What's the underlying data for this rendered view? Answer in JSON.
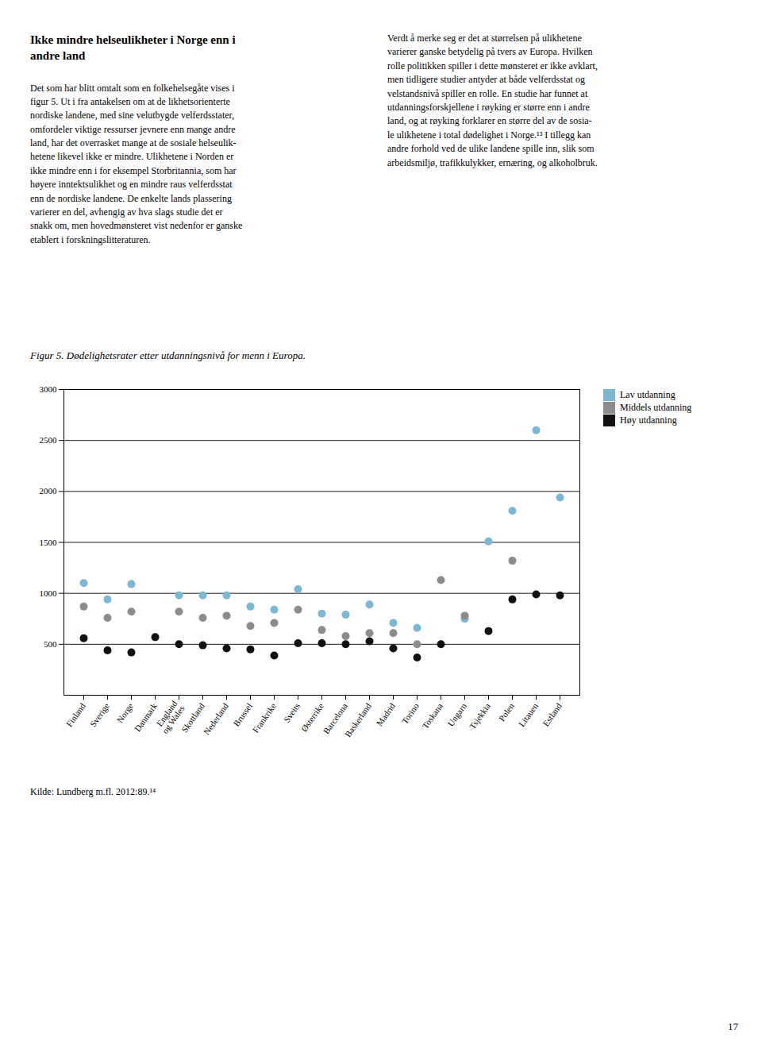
{
  "chart_data": {
    "type": "scatter",
    "title": "Figur 5. Dødelighetsrater etter utdanningsnivå for menn i Europa.",
    "caption": "Kilde: Lundberg m.fl. 2012:89.¹⁴",
    "annotations": [
      "Ikke mindre helseulikheter i Norge enn i\nandre land",
      "Det som har blitt omtalt som en folkehelsegåte vises i\nfigur 5. Ut i fra antakelsen om at de likhetsorienterte\nnordiske landene, med sine velutbygde velferdsstater,\nomfordeler viktige ressurser jevnere enn mange andre\nland, har det overrasket mange at de sosiale helseulik-\nhetene likevel ikke er mindre. Ulikhetene i Norden er\nikke mindre enn i for eksempel Storbritannia, som har\nhøyere inntektsulikhet og en mindre raus velferdsstat\nenn de nordiske landene. De enkelte lands plassering\nvarierer en del, avhengig av hva slags studie det er\nsnakk om, men hovedmønsteret vist nedenfor er ganske\netablert i forskningslitteraturen.",
      "Verdt å merke seg er det at størrelsen på ulikhetene\nvarierer ganske betydelig på tvers av Europa. Hvilken\nrolle politikken spiller i dette mønsteret er ikke avklart,\nmen tidligere studier antyder at både velferdsstat og\nvelstandsnivå spiller en rolle. En studie har funnet at\nutdanningsforskjellene i røyking er større enn i andre\nland, og at røyking forklarer en større del av de sosia-\nle ulikhetene i total dødelighet i Norge.¹³ I tillegg kan\nandre forhold ved de ulike landene spille inn, slik som\narbeidsmiljø, trafikkulykker, ernæring, og alkoholbruk.",
      "17"
    ],
    "categories": [
      "Finland",
      "Sverige",
      "Norge",
      "Danmark",
      "England\nog Wales",
      "Skottland",
      "Nederland",
      "Brussel",
      "Frankrike",
      "Sveits",
      "Østerrike",
      "Barcelona",
      "Baskerland",
      "Madrid",
      "Torino",
      "Toskana",
      "Ungarn",
      "Tsjekkia",
      "Polen",
      "Litauen",
      "Estland"
    ],
    "series": [
      {
        "name": "Lav utdanning",
        "color": "#7ab8d4",
        "values": [
          1100,
          940,
          1090,
          null,
          980,
          980,
          980,
          870,
          840,
          1040,
          800,
          790,
          890,
          710,
          660,
          null,
          750,
          1510,
          1810,
          2600,
          1940
        ]
      },
      {
        "name": "Middels utdanning",
        "color": "#8c8c8c",
        "values": [
          870,
          760,
          820,
          null,
          820,
          760,
          780,
          680,
          710,
          840,
          640,
          580,
          610,
          610,
          500,
          1130,
          780,
          null,
          1320,
          null,
          null
        ]
      },
      {
        "name": "Høy utdanning",
        "color": "#111111",
        "values": [
          560,
          440,
          420,
          570,
          500,
          490,
          460,
          450,
          390,
          510,
          510,
          500,
          530,
          460,
          370,
          500,
          null,
          630,
          940,
          990,
          980
        ]
      }
    ],
    "ylim": [
      0,
      3000
    ],
    "yticks": [
      500,
      1000,
      1500,
      2000,
      2500,
      3000
    ],
    "grid": true,
    "legend": "right"
  }
}
